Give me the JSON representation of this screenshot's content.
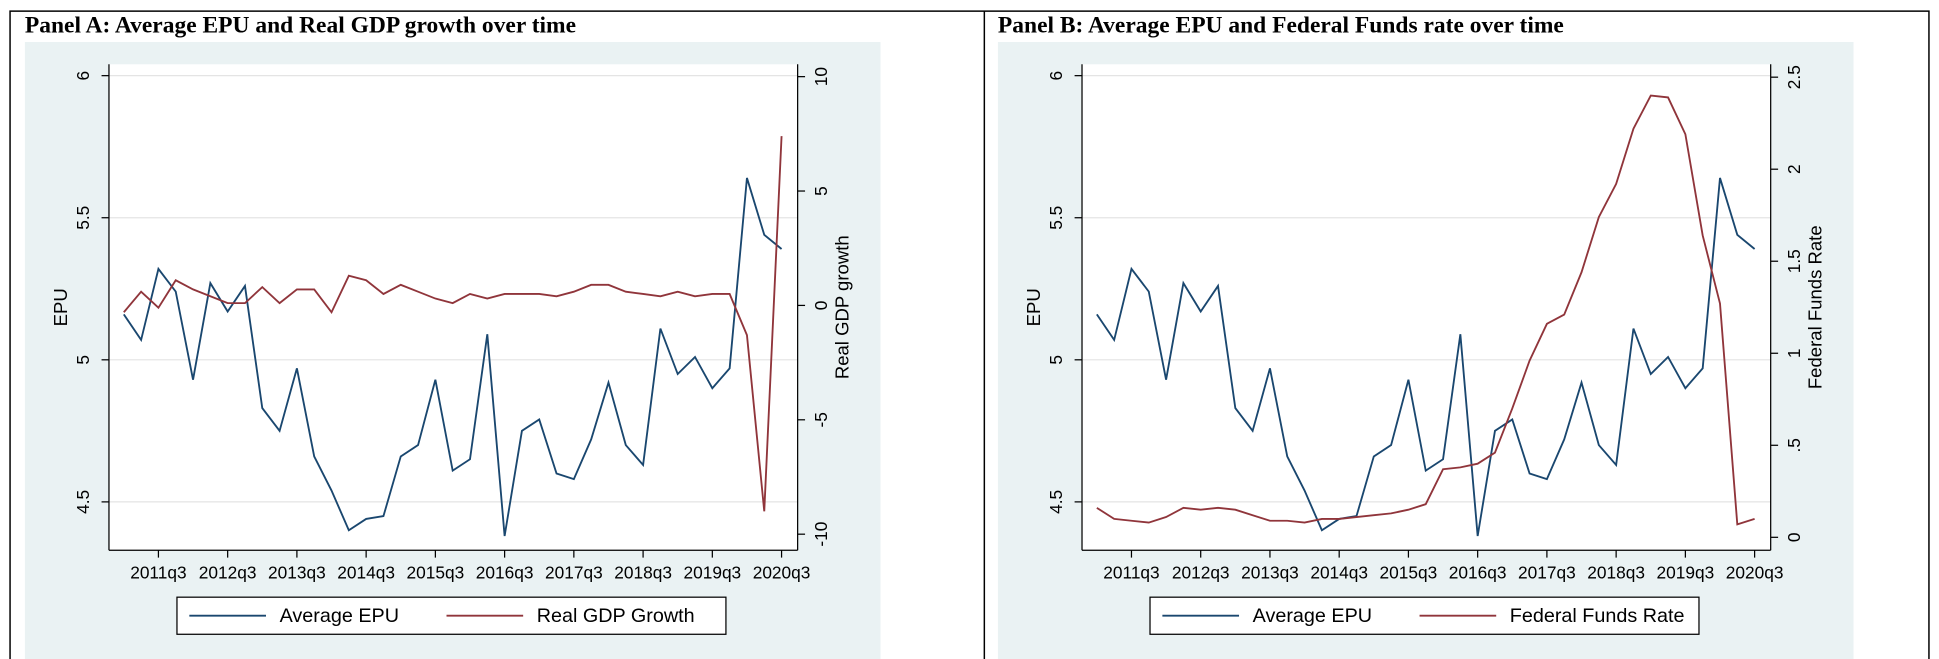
{
  "chart_data": [
    {
      "type": "line",
      "title": "Panel A: Average EPU and Real GDP growth over time",
      "categories": [
        null,
        null,
        "2011q3",
        null,
        null,
        null,
        "2012q3",
        null,
        null,
        null,
        "2013q3",
        null,
        null,
        null,
        "2014q3",
        null,
        null,
        null,
        "2015q3",
        null,
        null,
        null,
        "2016q3",
        null,
        null,
        null,
        "2017q3",
        null,
        null,
        null,
        "2018q3",
        null,
        null,
        null,
        "2019q3",
        null,
        null,
        null,
        "2020q3"
      ],
      "series": [
        {
          "name": "Average EPU",
          "color": "#1a476f",
          "values": [
            5.16,
            5.07,
            5.32,
            5.24,
            4.93,
            5.27,
            5.17,
            5.26,
            4.83,
            4.75,
            4.97,
            4.66,
            4.54,
            4.4,
            4.44,
            4.45,
            4.66,
            4.7,
            4.93,
            4.61,
            4.65,
            5.09,
            4.38,
            4.75,
            4.79,
            4.6,
            4.58,
            4.72,
            4.92,
            4.7,
            4.63,
            5.11,
            4.95,
            5.01,
            4.9,
            4.97,
            5.64,
            5.44,
            5.39
          ]
        },
        {
          "name": "Real GDP Growth",
          "color": "#90353b",
          "axis": "y2",
          "values": [
            -0.3,
            0.6,
            -0.1,
            1.1,
            0.7,
            0.4,
            0.1,
            0.1,
            0.8,
            0.1,
            0.7,
            0.7,
            -0.3,
            1.3,
            1.1,
            0.5,
            0.9,
            0.6,
            0.3,
            0.1,
            0.5,
            0.3,
            0.5,
            0.5,
            0.5,
            0.4,
            0.6,
            0.9,
            0.9,
            0.6,
            0.5,
            0.4,
            0.6,
            0.4,
            0.5,
            0.5,
            -1.3,
            -9.0,
            7.4
          ]
        }
      ],
      "ylabel": "EPU",
      "y2label": "Real GDP growth",
      "ylim": [
        4.33,
        6.04
      ],
      "yticks": [
        4.5,
        5,
        5.5,
        6
      ],
      "y2lim": [
        -10.7,
        10.54
      ],
      "y2ticks": [
        -10,
        -5,
        0,
        5,
        10
      ],
      "grid": true,
      "legend": "bottom"
    },
    {
      "type": "line",
      "title": "Panel B: Average EPU and Federal Funds rate over time",
      "categories": [
        null,
        null,
        "2011q3",
        null,
        null,
        null,
        "2012q3",
        null,
        null,
        null,
        "2013q3",
        null,
        null,
        null,
        "2014q3",
        null,
        null,
        null,
        "2015q3",
        null,
        null,
        null,
        "2016q3",
        null,
        null,
        null,
        "2017q3",
        null,
        null,
        null,
        "2018q3",
        null,
        null,
        null,
        "2019q3",
        null,
        null,
        null,
        "2020q3"
      ],
      "series": [
        {
          "name": "Average EPU",
          "color": "#1a476f",
          "values": [
            5.16,
            5.07,
            5.32,
            5.24,
            4.93,
            5.27,
            5.17,
            5.26,
            4.83,
            4.75,
            4.97,
            4.66,
            4.54,
            4.4,
            4.44,
            4.45,
            4.66,
            4.7,
            4.93,
            4.61,
            4.65,
            5.09,
            4.38,
            4.75,
            4.79,
            4.6,
            4.58,
            4.72,
            4.92,
            4.7,
            4.63,
            5.11,
            4.95,
            5.01,
            4.9,
            4.97,
            5.64,
            5.44,
            5.39
          ]
        },
        {
          "name": "Federal Funds Rate",
          "color": "#90353b",
          "axis": "y2",
          "values": [
            0.16,
            0.1,
            0.09,
            0.08,
            0.11,
            0.16,
            0.15,
            0.16,
            0.15,
            0.12,
            0.09,
            0.09,
            0.08,
            0.1,
            0.1,
            0.11,
            0.12,
            0.13,
            0.15,
            0.18,
            0.37,
            0.38,
            0.4,
            0.46,
            0.7,
            0.96,
            1.16,
            1.21,
            1.44,
            1.74,
            1.92,
            2.22,
            2.4,
            2.39,
            2.19,
            1.64,
            1.27,
            0.07,
            0.1
          ]
        }
      ],
      "ylabel": "EPU",
      "y2label": "Federal Funds Rate",
      "ylim": [
        4.33,
        6.04
      ],
      "yticks": [
        4.5,
        5,
        5.5,
        6
      ],
      "y2lim": [
        -0.07,
        2.57
      ],
      "y2ticks": [
        0,
        {
          "value": 0.5,
          "label": ".5"
        },
        1,
        1.5,
        2,
        2.5
      ],
      "grid": true,
      "legend": "bottom"
    }
  ]
}
